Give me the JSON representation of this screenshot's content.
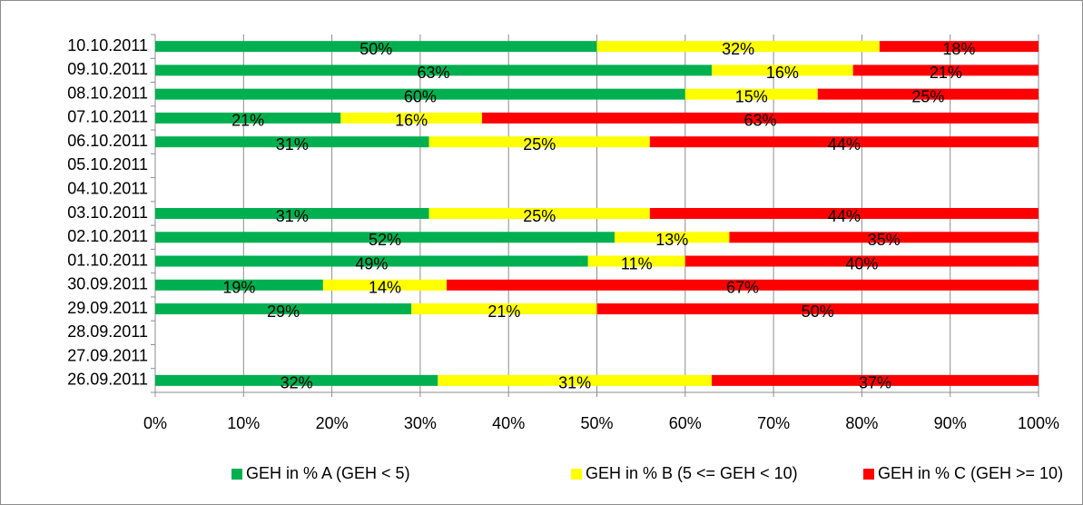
{
  "chart_data": {
    "type": "bar",
    "orientation": "horizontal",
    "stacked": true,
    "categories": [
      "10.10.2011",
      "09.10.2011",
      "08.10.2011",
      "07.10.2011",
      "06.10.2011",
      "05.10.2011",
      "04.10.2011",
      "03.10.2011",
      "02.10.2011",
      "01.10.2011",
      "30.09.2011",
      "29.09.2011",
      "28.09.2011",
      "27.09.2011",
      "26.09.2011"
    ],
    "series": [
      {
        "name": "GEH in % A (GEH < 5)",
        "color": "#00b050",
        "values": [
          50,
          63,
          60,
          21,
          31,
          null,
          null,
          31,
          52,
          49,
          19,
          29,
          null,
          null,
          32
        ],
        "value_labels": [
          "50%",
          "63%",
          "60%",
          "21%",
          "31%",
          null,
          null,
          "31%",
          "52%",
          "49%",
          "19%",
          "29%",
          null,
          null,
          "32%"
        ]
      },
      {
        "name": "GEH in % B (5 <= GEH < 10)",
        "color": "#ffff00",
        "values": [
          32,
          16,
          15,
          16,
          25,
          null,
          null,
          25,
          13,
          11,
          14,
          21,
          null,
          null,
          31
        ],
        "value_labels": [
          "32%",
          "16%",
          "15%",
          "16%",
          "25%",
          null,
          null,
          "25%",
          "13%",
          "11%",
          "14%",
          "21%",
          null,
          null,
          "31%"
        ]
      },
      {
        "name": "GEH in % C (GEH >= 10)",
        "color": "#ff0000",
        "values": [
          18,
          21,
          25,
          63,
          44,
          null,
          null,
          44,
          35,
          40,
          67,
          50,
          null,
          null,
          37
        ],
        "value_labels": [
          "18%",
          "21%",
          "25%",
          "63%",
          "44%",
          null,
          null,
          "44%",
          "35%",
          "40%",
          "67%",
          "50%",
          null,
          null,
          "37%"
        ]
      }
    ],
    "xlim": [
      0,
      100
    ],
    "xticks": [
      {
        "value": 0,
        "label": "0%"
      },
      {
        "value": 10,
        "label": "10%"
      },
      {
        "value": 20,
        "label": "20%"
      },
      {
        "value": 30,
        "label": "30%"
      },
      {
        "value": 40,
        "label": "40%"
      },
      {
        "value": 50,
        "label": "50%"
      },
      {
        "value": 60,
        "label": "60%"
      },
      {
        "value": 70,
        "label": "70%"
      },
      {
        "value": 80,
        "label": "80%"
      },
      {
        "value": 90,
        "label": "90%"
      },
      {
        "value": 100,
        "label": "100%"
      }
    ],
    "grid": true,
    "legend": "bottom"
  }
}
